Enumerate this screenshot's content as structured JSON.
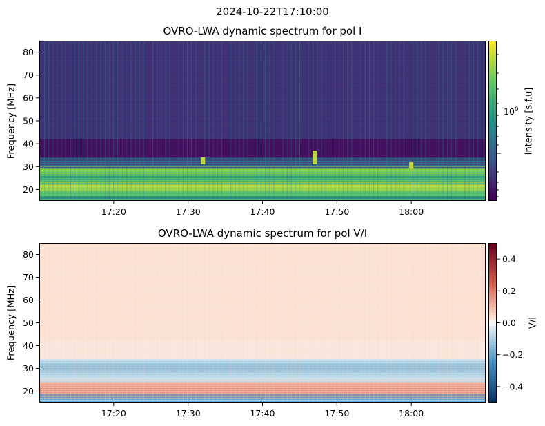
{
  "suptitle": "2024-10-22T17:10:00",
  "chart_data": [
    {
      "type": "heatmap",
      "title": "OVRO-LWA dynamic spectrum for pol I",
      "xlabel": "",
      "ylabel": "Frequency [MHz]",
      "x_ticks": [
        "17:20",
        "17:30",
        "17:40",
        "17:50",
        "18:00"
      ],
      "x_range": [
        "17:10",
        "18:10"
      ],
      "y_ticks": [
        20,
        30,
        40,
        50,
        60,
        70,
        80
      ],
      "ylim": [
        15,
        85
      ],
      "colormap": "viridis",
      "colorbar": {
        "label": "Intensity [s.f.u]",
        "scale": "log",
        "tick_label": "10",
        "tick_exp": "0"
      },
      "bands": [
        {
          "from": 15,
          "to": 17,
          "level": 0.45
        },
        {
          "from": 17,
          "to": 19,
          "level": 0.75
        },
        {
          "from": 19,
          "to": 22,
          "level": 0.85
        },
        {
          "from": 22,
          "to": 26,
          "level": 0.6
        },
        {
          "from": 26,
          "to": 29,
          "level": 0.8
        },
        {
          "from": 29,
          "to": 34,
          "level": 0.35
        },
        {
          "from": 34,
          "to": 42,
          "level": 0.05
        },
        {
          "from": 42,
          "to": 85,
          "level": 0.15
        }
      ],
      "bursts": [
        {
          "time": "17:32",
          "freq_low": 31,
          "freq_high": 34
        },
        {
          "time": "17:47",
          "freq_low": 31,
          "freq_high": 37
        },
        {
          "time": "18:00",
          "freq_low": 29,
          "freq_high": 32
        }
      ]
    },
    {
      "type": "heatmap",
      "title": "OVRO-LWA dynamic spectrum for pol V/I",
      "xlabel": "",
      "ylabel": "Frequency [MHz]",
      "x_ticks": [
        "17:20",
        "17:30",
        "17:40",
        "17:50",
        "18:00"
      ],
      "x_range": [
        "17:10",
        "18:10"
      ],
      "y_ticks": [
        20,
        30,
        40,
        50,
        60,
        70,
        80
      ],
      "ylim": [
        15,
        85
      ],
      "colormap": "RdBu_r",
      "colorbar": {
        "label": "V/I",
        "scale": "linear",
        "ticks": [
          "0.4",
          "0.2",
          "0.0",
          "−0.2",
          "−0.4"
        ],
        "range": [
          -0.5,
          0.5
        ]
      },
      "bands": [
        {
          "from": 15,
          "to": 19,
          "level": -0.25
        },
        {
          "from": 19,
          "to": 24,
          "level": 0.12
        },
        {
          "from": 24,
          "to": 34,
          "level": -0.08
        },
        {
          "from": 34,
          "to": 42,
          "level": 0.03
        },
        {
          "from": 42,
          "to": 85,
          "level": 0.04
        }
      ]
    }
  ]
}
